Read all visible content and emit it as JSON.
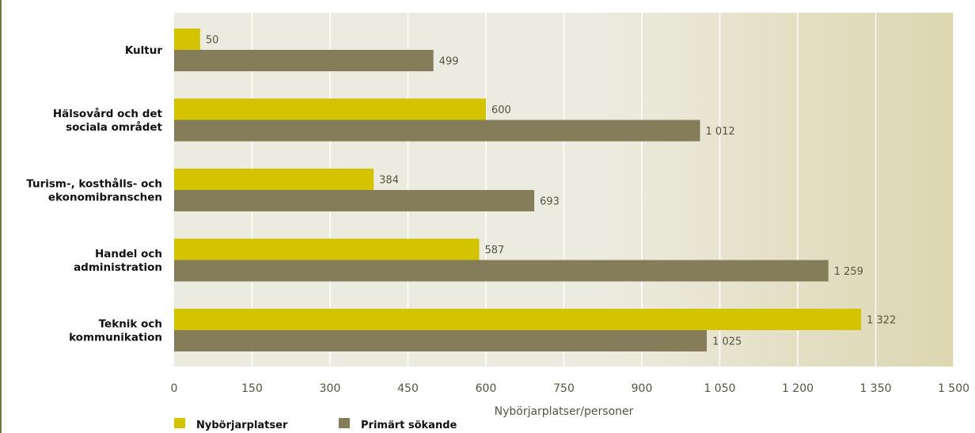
{
  "chart_data": {
    "type": "bar",
    "orientation": "horizontal",
    "categories": [
      [
        "Kultur"
      ],
      [
        "Hälsovård och det",
        "sociala området"
      ],
      [
        "Turism-, kosthålls- och",
        "ekonomibranschen"
      ],
      [
        "Handel och",
        "administration"
      ],
      [
        "Teknik och",
        "kommunikation"
      ]
    ],
    "series": [
      {
        "name": "Nybörjarplatser",
        "color": "#d3c300",
        "values": [
          50,
          600,
          384,
          587,
          1322
        ],
        "labels": [
          "50",
          "600",
          "384",
          "587",
          "1 322"
        ]
      },
      {
        "name": "Primärt sökande",
        "color": "#857d5a",
        "values": [
          499,
          1012,
          693,
          1259,
          1025
        ],
        "labels": [
          "499",
          "1 012",
          "693",
          "1 259",
          "1 025"
        ]
      }
    ],
    "xlabel": "Nybörjarplatser/personer",
    "xlim": [
      0,
      1500
    ],
    "xticks": [
      0,
      150,
      300,
      450,
      600,
      750,
      900,
      1050,
      1200,
      1350,
      1500
    ],
    "xtick_labels": [
      "0",
      "150",
      "300",
      "450",
      "600",
      "750",
      "900",
      "1 050",
      "1 200",
      "1 350",
      "1 500"
    ],
    "grid": true,
    "legend_position": "bottom-left",
    "background_color": "#ecebdf",
    "background_color_end": "#dcd6b0",
    "gridline_color": "#ffffff"
  }
}
